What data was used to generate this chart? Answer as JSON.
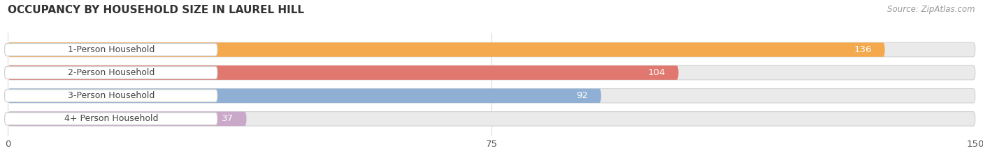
{
  "title": "OCCUPANCY BY HOUSEHOLD SIZE IN LAUREL HILL",
  "source": "Source: ZipAtlas.com",
  "categories": [
    "1-Person Household",
    "2-Person Household",
    "3-Person Household",
    "4+ Person Household"
  ],
  "values": [
    136,
    104,
    92,
    37
  ],
  "bar_colors": [
    "#F5A94E",
    "#E07870",
    "#8FAFD4",
    "#C9A8C9"
  ],
  "bar_bg_colors": [
    "#EAEAEA",
    "#EAEAEA",
    "#EAEAEA",
    "#EAEAEA"
  ],
  "xlim": [
    0,
    150
  ],
  "xticks": [
    0,
    75,
    150
  ],
  "value_color": "white",
  "label_color": "#444444",
  "title_color": "#333333",
  "source_color": "#999999",
  "bg_color": "#ffffff",
  "figsize": [
    14.06,
    2.33
  ],
  "dpi": 100
}
